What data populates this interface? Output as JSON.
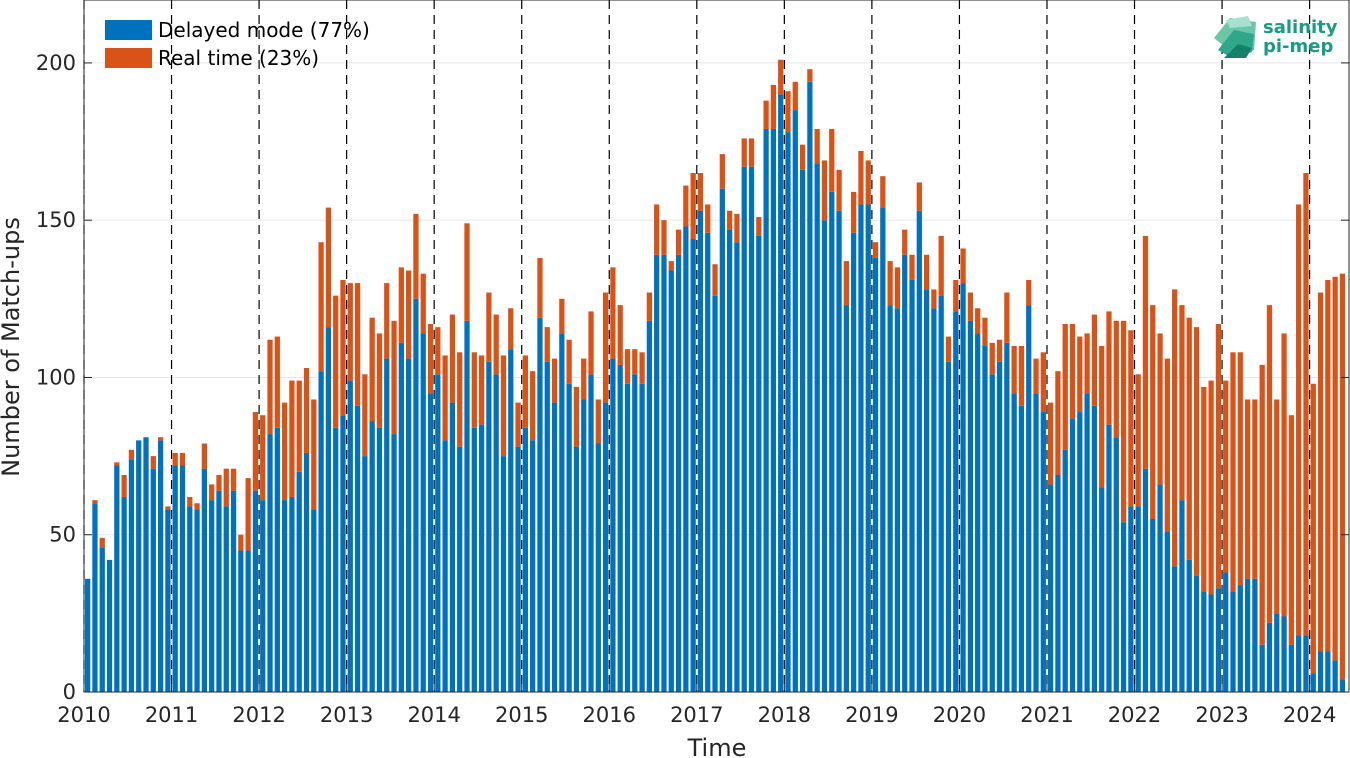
{
  "chart_data": {
    "type": "bar",
    "stacked": true,
    "xlabel": "Time",
    "ylabel": "Number of Match-ups",
    "ylim": [
      0,
      220
    ],
    "yticks": [
      0,
      50,
      100,
      150,
      200
    ],
    "xlim": [
      2010.0,
      2024.45
    ],
    "xticks": [
      2010,
      2011,
      2012,
      2013,
      2014,
      2015,
      2016,
      2017,
      2018,
      2019,
      2020,
      2021,
      2022,
      2023,
      2024
    ],
    "year_boundaries": [
      2010,
      2011,
      2012,
      2013,
      2014,
      2015,
      2016,
      2017,
      2018,
      2019,
      2020,
      2021,
      2022,
      2023,
      2024
    ],
    "grid": "horizontal",
    "legend_position": "top-left",
    "x_start": "2010-01",
    "x_step": "month",
    "series": [
      {
        "name": "Delayed mode (77%)",
        "color": "#0072BD",
        "values": [
          36,
          60,
          46,
          42,
          72,
          62,
          74,
          80,
          81,
          71,
          80,
          58,
          72,
          72,
          59,
          58,
          71,
          61,
          64,
          59,
          64,
          45,
          45,
          64,
          61,
          82,
          84,
          61,
          62,
          70,
          76,
          58,
          102,
          116,
          84,
          88,
          99,
          91,
          75,
          86,
          84,
          106,
          82,
          111,
          106,
          125,
          114,
          95,
          101,
          80,
          92,
          78,
          118,
          84,
          85,
          105,
          101,
          75,
          109,
          78,
          84,
          80,
          119,
          105,
          92,
          114,
          98,
          78,
          93,
          101,
          79,
          92,
          106,
          104,
          98,
          101,
          98,
          118,
          139,
          139,
          134,
          139,
          148,
          144,
          153,
          146,
          126,
          160,
          147,
          143,
          167,
          167,
          145,
          179,
          179,
          190,
          178,
          185,
          166,
          194,
          168,
          150,
          159,
          153,
          123,
          146,
          155,
          155,
          138,
          154,
          123,
          122,
          139,
          131,
          153,
          128,
          122,
          126,
          105,
          121,
          130,
          118,
          114,
          110,
          101,
          105,
          111,
          95,
          91,
          123,
          95,
          89,
          66,
          69,
          77,
          87,
          89,
          95,
          91,
          65,
          85,
          81,
          54,
          59,
          59,
          71,
          55,
          66,
          51,
          40,
          61,
          42,
          37,
          32,
          31,
          33,
          38,
          32,
          34,
          36,
          36,
          15,
          22,
          25,
          24,
          15,
          18,
          18,
          6,
          13,
          13,
          10,
          4
        ]
      },
      {
        "name": "Real time (23%)",
        "color": "#D95319",
        "values": [
          0,
          1,
          3,
          0,
          1,
          7,
          3,
          0,
          0,
          4,
          1,
          1,
          4,
          4,
          3,
          2,
          8,
          5,
          5,
          12,
          7,
          5,
          23,
          25,
          27,
          30,
          29,
          31,
          37,
          29,
          27,
          35,
          41,
          38,
          42,
          43,
          31,
          39,
          26,
          33,
          30,
          24,
          36,
          24,
          28,
          27,
          19,
          22,
          15,
          27,
          28,
          30,
          31,
          24,
          22,
          22,
          19,
          32,
          13,
          14,
          23,
          22,
          19,
          11,
          14,
          11,
          14,
          19,
          13,
          20,
          14,
          35,
          29,
          19,
          11,
          8,
          10,
          9,
          16,
          11,
          3,
          8,
          13,
          21,
          12,
          9,
          10,
          11,
          6,
          9,
          9,
          9,
          6,
          9,
          14,
          11,
          13,
          9,
          8,
          4,
          11,
          19,
          20,
          13,
          14,
          13,
          17,
          14,
          5,
          10,
          14,
          13,
          8,
          8,
          9,
          11,
          6,
          19,
          8,
          10,
          11,
          9,
          8,
          9,
          10,
          7,
          16,
          15,
          19,
          8,
          11,
          19,
          26,
          33,
          40,
          30,
          24,
          19,
          29,
          45,
          36,
          37,
          64,
          56,
          42,
          74,
          68,
          48,
          55,
          88,
          62,
          77,
          79,
          65,
          68,
          84,
          61,
          76,
          74,
          57,
          57,
          89,
          101,
          68,
          90,
          73,
          137,
          147,
          92,
          114,
          118,
          122,
          129
        ]
      }
    ]
  },
  "logo": {
    "line1": "salinity",
    "line2": "pi-mep"
  }
}
